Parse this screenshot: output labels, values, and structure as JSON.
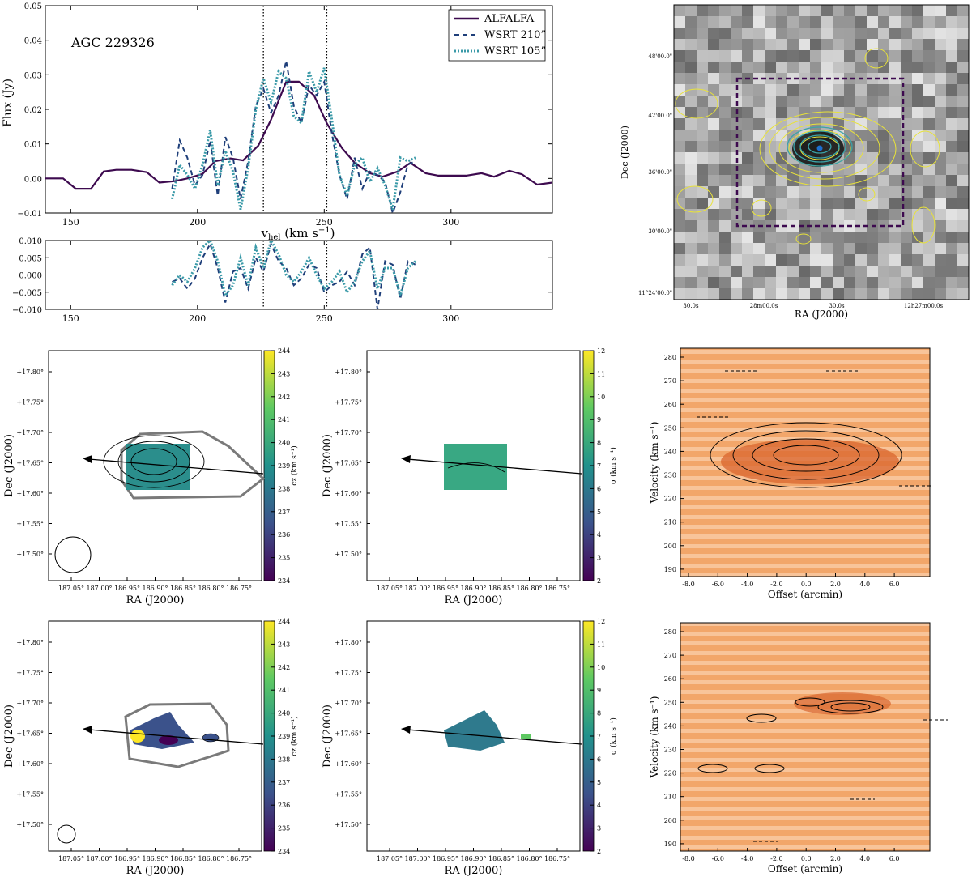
{
  "chart_data": [
    {
      "type": "line",
      "id": "spectrum",
      "label": "AGC 229326",
      "xlabel": "v_hel (km s^-1)",
      "xlabel_main": "v",
      "xlabel_sub": "hel",
      "xlabel_unit": " (km s",
      "xlabel_sup": "−1",
      "xlabel_close": ")",
      "ylabel": "Flux (Jy)",
      "xlim": [
        140,
        340
      ],
      "ylim": [
        -0.01,
        0.05
      ],
      "xticks": [
        "150",
        "200",
        "250",
        "300"
      ],
      "xtick_values": [
        150,
        200,
        250,
        300
      ],
      "yticks": [
        "−0.01",
        "0.00",
        "0.01",
        "0.02",
        "0.03",
        "0.04",
        "0.05"
      ],
      "ytick_values": [
        -0.01,
        0.0,
        0.01,
        0.02,
        0.03,
        0.04,
        0.05
      ],
      "vlines": [
        226,
        251
      ],
      "legend": [
        "ALFALFA",
        "WSRT 210”",
        "WSRT 105”"
      ],
      "series": [
        {
          "name": "ALFALFA",
          "color": "#3d0a4f",
          "x": [
            140,
            147,
            152,
            158,
            163,
            168,
            174,
            180,
            185,
            191,
            196,
            202,
            207,
            213,
            218,
            224,
            229,
            235,
            240,
            246,
            251,
            257,
            262,
            268,
            273,
            279,
            284,
            290,
            295,
            301,
            306,
            312,
            317,
            323,
            328,
            334,
            340
          ],
          "y": [
            0.0,
            0.0,
            -0.003,
            -0.003,
            0.002,
            0.0025,
            0.0025,
            0.0018,
            -0.0012,
            -0.0008,
            0.0,
            0.0013,
            0.005,
            0.0058,
            0.0052,
            0.0095,
            0.017,
            0.028,
            0.028,
            0.024,
            0.016,
            0.0088,
            0.0045,
            0.0015,
            0.0005,
            0.002,
            0.0045,
            0.0015,
            0.0008,
            0.0008,
            0.0008,
            0.0015,
            0.0005,
            0.0022,
            0.0012,
            -0.0018,
            -0.0012
          ]
        },
        {
          "name": "WSRT 210”",
          "color": "#1f3f7a",
          "x": [
            190,
            193,
            196,
            199,
            202,
            205,
            208,
            211,
            214,
            217,
            220,
            223,
            226,
            229,
            232,
            235,
            238,
            241,
            244,
            247,
            250,
            253,
            256,
            259,
            262,
            265,
            268,
            271,
            274,
            277,
            280,
            283,
            286
          ],
          "y": [
            -0.003,
            0.011,
            0.006,
            -0.002,
            0.001,
            0.011,
            -0.005,
            0.012,
            0.006,
            -0.006,
            0.005,
            0.021,
            0.026,
            0.019,
            0.024,
            0.034,
            0.021,
            0.016,
            0.027,
            0.024,
            0.028,
            0.013,
            0.001,
            -0.006,
            0.006,
            -0.003,
            0.002,
            0.001,
            -0.001,
            -0.01,
            -0.004,
            0.004,
            0.005
          ]
        },
        {
          "name": "WSRT 105”",
          "color": "#3a9aa8",
          "x": [
            190,
            193,
            196,
            199,
            202,
            205,
            208,
            211,
            214,
            217,
            220,
            223,
            226,
            229,
            232,
            235,
            238,
            241,
            244,
            247,
            250,
            253,
            256,
            259,
            262,
            265,
            268,
            271,
            274,
            277,
            280,
            283,
            286
          ],
          "y": [
            -0.006,
            0.004,
            0.001,
            -0.003,
            0.004,
            0.014,
            -0.002,
            0.008,
            0.002,
            -0.009,
            0.003,
            0.02,
            0.029,
            0.022,
            0.031,
            0.029,
            0.018,
            0.016,
            0.031,
            0.025,
            0.032,
            0.017,
            0.001,
            -0.005,
            0.004,
            0.006,
            -0.001,
            0.003,
            -0.002,
            -0.009,
            0.006,
            0.005,
            0.006
          ]
        }
      ]
    },
    {
      "type": "line",
      "id": "residual",
      "xlim": [
        140,
        340
      ],
      "ylim": [
        -0.01,
        0.01
      ],
      "xticks": [
        "150",
        "200",
        "250",
        "300"
      ],
      "xtick_values": [
        150,
        200,
        250,
        300
      ],
      "yticks": [
        "−0.010",
        "−0.005",
        "0.000",
        "0.005",
        "0.010"
      ],
      "ytick_values": [
        -0.01,
        -0.005,
        0.0,
        0.005,
        0.01
      ],
      "vlines": [
        226,
        251
      ],
      "series": [
        {
          "name": "residual 210”",
          "color": "#1f3f7a",
          "x": [
            190,
            193,
            196,
            199,
            202,
            205,
            208,
            211,
            214,
            217,
            220,
            223,
            226,
            229,
            232,
            235,
            238,
            241,
            244,
            247,
            250,
            253,
            256,
            259,
            262,
            265,
            268,
            271,
            274,
            277,
            280,
            283,
            286
          ],
          "y": [
            -0.002,
            -0.001,
            -0.004,
            -0.001,
            0.005,
            0.009,
            0.002,
            -0.008,
            0.001,
            0.002,
            -0.004,
            0.005,
            0.001,
            0.009,
            0.004,
            0.002,
            -0.003,
            -0.001,
            0.003,
            0.002,
            -0.005,
            -0.003,
            -0.002,
            0.001,
            -0.003,
            0.006,
            0.008,
            -0.01,
            0.004,
            0.003,
            -0.007,
            0.004,
            0.003
          ]
        },
        {
          "name": "residual 105”",
          "color": "#3a9aa8",
          "x": [
            190,
            193,
            196,
            199,
            202,
            205,
            208,
            211,
            214,
            217,
            220,
            223,
            226,
            229,
            232,
            235,
            238,
            241,
            244,
            247,
            250,
            253,
            256,
            259,
            262,
            265,
            268,
            271,
            274,
            277,
            280,
            283,
            286
          ],
          "y": [
            -0.003,
            0.0,
            -0.002,
            0.002,
            0.008,
            0.01,
            0.004,
            -0.006,
            -0.003,
            0.005,
            -0.003,
            0.008,
            0.002,
            0.01,
            0.006,
            0.0,
            -0.002,
            0.001,
            0.005,
            0.0,
            -0.004,
            -0.002,
            0.001,
            -0.005,
            -0.002,
            0.004,
            0.007,
            -0.004,
            0.002,
            0.002,
            -0.006,
            0.002,
            0.004
          ]
        }
      ]
    },
    {
      "type": "heatmap",
      "id": "optical",
      "subtype": "image with contours",
      "xlabel": "RA (J2000)",
      "ylabel": "Dec (J2000)",
      "xticks": [
        "30.0s",
        "28m00.0s",
        "30.0s",
        "12h27m00.0s"
      ],
      "yticks": [
        "48'00.0\"",
        "42'00.0\"",
        "36'00.0\"",
        "30'00.0\"",
        "11°24'00.0\""
      ]
    },
    {
      "type": "heatmap",
      "id": "mom1_210",
      "xlabel": "RA (J2000)",
      "ylabel": "Dec (J2000)",
      "xticks": [
        "187.05°",
        "187.00°",
        "186.95°",
        "186.90°",
        "186.85°",
        "186.80°",
        "186.75°"
      ],
      "yticks": [
        "+17.80°",
        "+17.75°",
        "+17.70°",
        "+17.65°",
        "+17.60°",
        "+17.55°",
        "+17.50°"
      ],
      "colorbar_label": "cz (km s⁻¹)",
      "colorbar_ticks": [
        "244",
        "243",
        "242",
        "241",
        "240",
        "239",
        "238",
        "237",
        "236",
        "235",
        "234"
      ],
      "colorbar_range": [
        234,
        244
      ]
    },
    {
      "type": "heatmap",
      "id": "mom2_210",
      "xlabel": "RA (J2000)",
      "ylabel": "Dec (J2000)",
      "xticks": [
        "187.05°",
        "187.00°",
        "186.95°",
        "186.90°",
        "186.85°",
        "186.80°",
        "186.75°"
      ],
      "yticks": [
        "+17.80°",
        "+17.75°",
        "+17.70°",
        "+17.65°",
        "+17.60°",
        "+17.55°",
        "+17.50°"
      ],
      "colorbar_label": "σ (km s⁻¹)",
      "colorbar_ticks": [
        "12",
        "11",
        "10",
        "9",
        "8",
        "7",
        "6",
        "5",
        "4",
        "3",
        "2"
      ],
      "colorbar_range": [
        2,
        12
      ]
    },
    {
      "type": "heatmap",
      "id": "pv_210",
      "xlabel": "Offset (arcmin)",
      "ylabel": "Velocity (km s⁻¹)",
      "xticks": [
        "-8.0",
        "-6.0",
        "-4.0",
        "-2.0",
        "0.0",
        "2.0",
        "4.0",
        "6.0"
      ],
      "yticks": [
        "280",
        "270",
        "260",
        "250",
        "240",
        "230",
        "220",
        "210",
        "200",
        "190"
      ]
    },
    {
      "type": "heatmap",
      "id": "mom1_105",
      "xlabel": "RA (J2000)",
      "ylabel": "Dec (J2000)",
      "xticks": [
        "187.05°",
        "187.00°",
        "186.95°",
        "186.90°",
        "186.85°",
        "186.80°",
        "186.75°"
      ],
      "yticks": [
        "+17.80°",
        "+17.75°",
        "+17.70°",
        "+17.65°",
        "+17.60°",
        "+17.55°",
        "+17.50°"
      ],
      "colorbar_label": "cz (km s⁻¹)",
      "colorbar_ticks": [
        "244",
        "243",
        "242",
        "241",
        "240",
        "239",
        "238",
        "237",
        "236",
        "235",
        "234"
      ],
      "colorbar_range": [
        234,
        244
      ]
    },
    {
      "type": "heatmap",
      "id": "mom2_105",
      "xlabel": "RA (J2000)",
      "ylabel": "Dec (J2000)",
      "xticks": [
        "187.05°",
        "187.00°",
        "186.95°",
        "186.90°",
        "186.85°",
        "186.80°",
        "186.75°"
      ],
      "yticks": [
        "+17.80°",
        "+17.75°",
        "+17.70°",
        "+17.65°",
        "+17.60°",
        "+17.55°",
        "+17.50°"
      ],
      "colorbar_label": "σ (km s⁻¹)",
      "colorbar_ticks": [
        "12",
        "11",
        "10",
        "9",
        "8",
        "7",
        "6",
        "5",
        "4",
        "3",
        "2"
      ],
      "colorbar_range": [
        2,
        12
      ]
    },
    {
      "type": "heatmap",
      "id": "pv_105",
      "xlabel": "Offset (arcmin)",
      "ylabel": "Velocity (km s⁻¹)",
      "xticks": [
        "-8.0",
        "-6.0",
        "-4.0",
        "-2.0",
        "0.0",
        "2.0",
        "4.0",
        "6.0"
      ],
      "yticks": [
        "280",
        "270",
        "260",
        "250",
        "240",
        "230",
        "220",
        "210",
        "200",
        "190"
      ]
    }
  ]
}
